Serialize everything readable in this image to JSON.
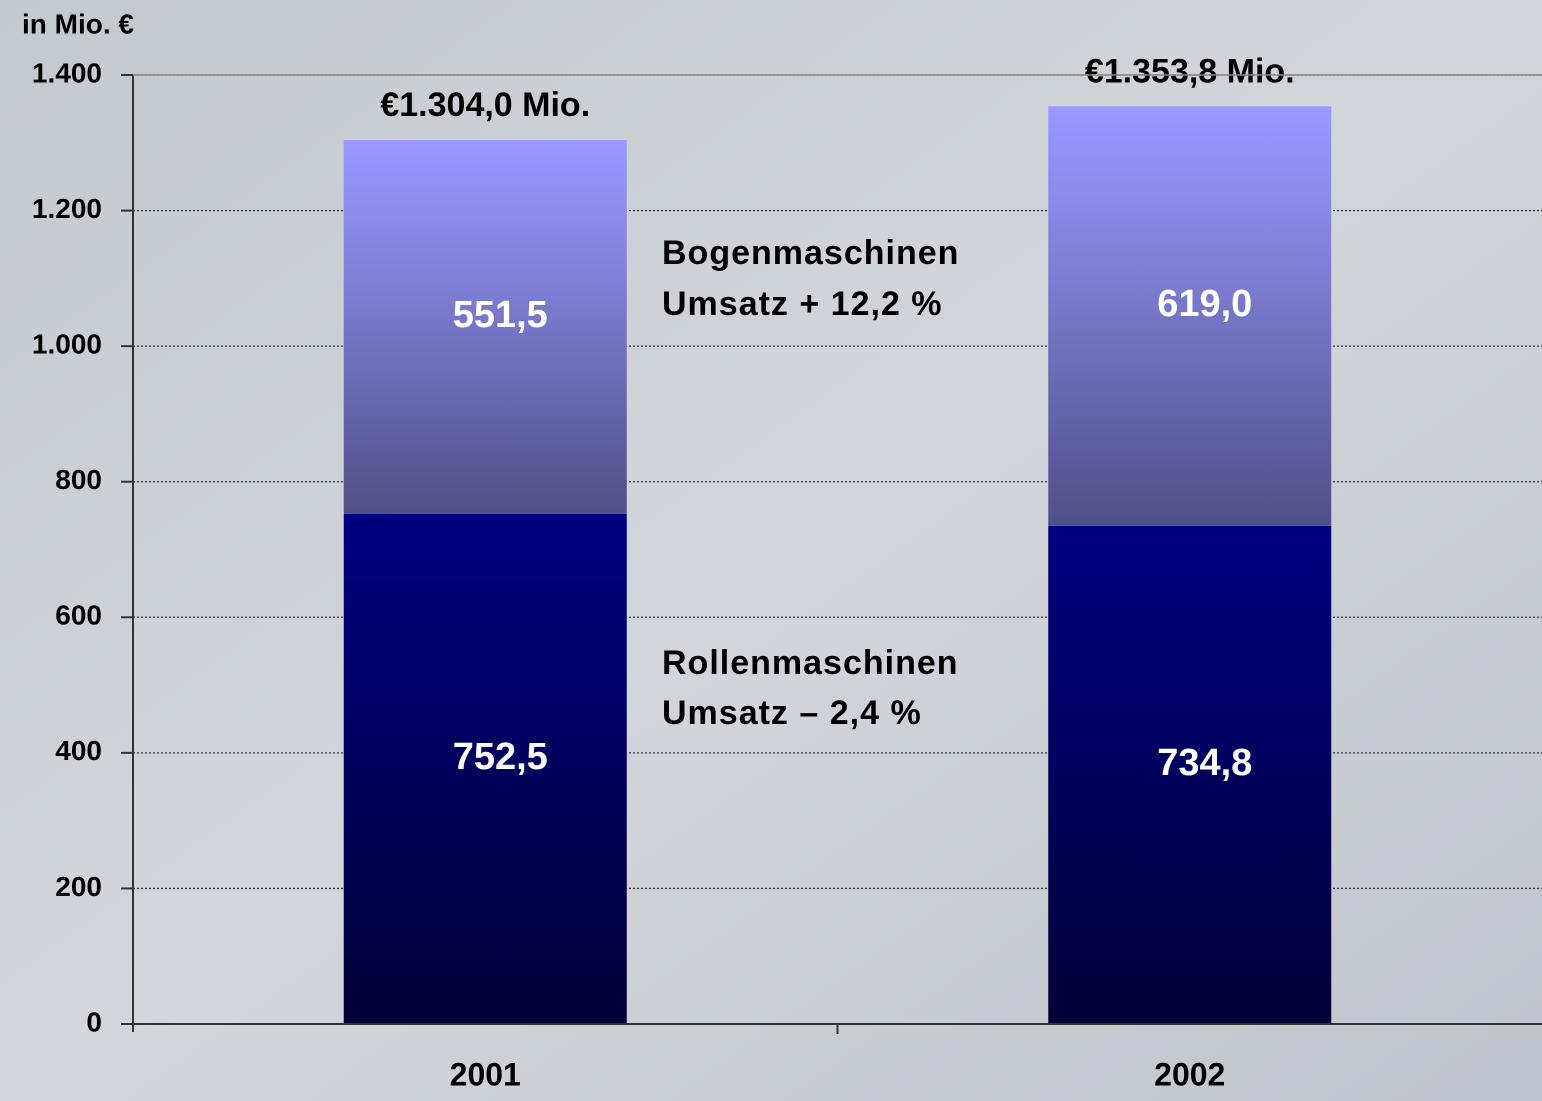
{
  "chart_data": {
    "type": "stacked_bar",
    "y_axis_label": "in Mio. €",
    "categories": [
      "2001",
      "2002"
    ],
    "series": [
      {
        "name": "Rollenmaschinen",
        "change_label": "Umsatz – 2,4 %",
        "color": "#000080",
        "values": [
          752.5,
          734.8
        ],
        "value_labels": [
          "752,5",
          "734,8"
        ]
      },
      {
        "name": "Bogenmaschinen",
        "change_label": "Umsatz + 12,2 %",
        "color": "#9999ff",
        "values": [
          551.5,
          619.0
        ],
        "value_labels": [
          "551,5",
          "619,0"
        ]
      }
    ],
    "totals": [
      1304.0,
      1353.8
    ],
    "total_labels": [
      "€1.304,0 Mio.",
      "€1.353,8 Mio."
    ],
    "ylim": [
      0,
      1400
    ],
    "yticks": [
      0,
      200,
      400,
      600,
      800,
      {
        "value": 1000,
        "label": "1.000"
      },
      {
        "value": 1200,
        "label": "1.200"
      },
      {
        "value": 1400,
        "label": "1.400"
      }
    ],
    "grid": true
  }
}
